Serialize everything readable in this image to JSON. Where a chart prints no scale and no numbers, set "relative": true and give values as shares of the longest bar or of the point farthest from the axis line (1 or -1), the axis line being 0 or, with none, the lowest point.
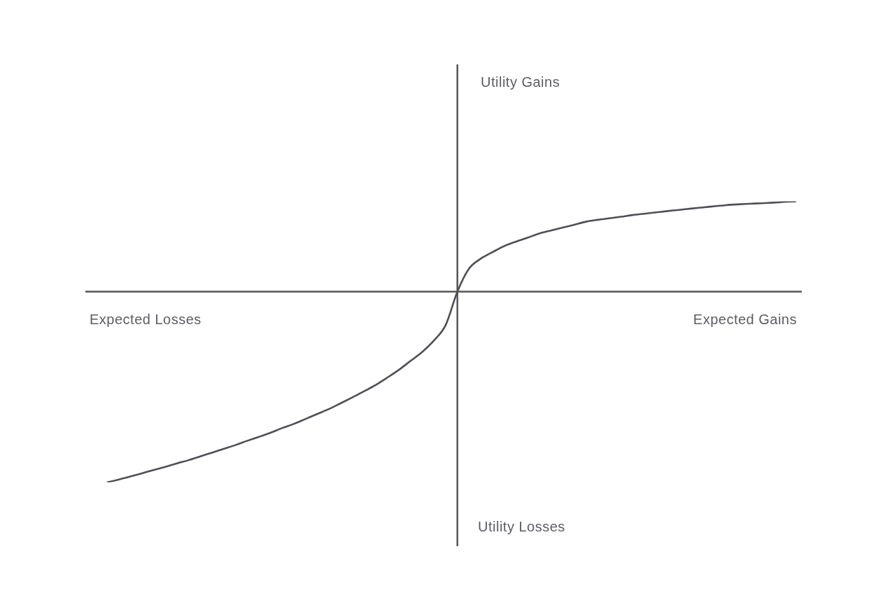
{
  "chart_data": {
    "type": "line",
    "relative": true,
    "categories": [
      null,
      null,
      null,
      null,
      null,
      null,
      null,
      null,
      null,
      null,
      null,
      null,
      null,
      null,
      null,
      null,
      null,
      null,
      null,
      null,
      null,
      null,
      null,
      null,
      null,
      null,
      null,
      null,
      null,
      null,
      null,
      null,
      null,
      null,
      null,
      null,
      null,
      null,
      null,
      null,
      null,
      null,
      null,
      null,
      null,
      null,
      null,
      null,
      null,
      null,
      null,
      null,
      null,
      null,
      null,
      null,
      null,
      null,
      null,
      null
    ],
    "values": [
      -1,
      -0.986,
      -0.97,
      -0.953,
      -0.936,
      -0.919,
      -0.901,
      -0.884,
      -0.864,
      -0.845,
      -0.825,
      -0.805,
      -0.783,
      -0.762,
      -0.74,
      -0.716,
      -0.694,
      -0.668,
      -0.642,
      -0.616,
      -0.586,
      -0.555,
      -0.523,
      -0.49,
      -0.451,
      -0.41,
      -0.363,
      -0.316,
      -0.256,
      -0.175,
      0,
      0.121,
      0.173,
      0.207,
      0.239,
      0.262,
      0.283,
      0.305,
      0.321,
      0.336,
      0.351,
      0.367,
      0.377,
      0.385,
      0.393,
      0.402,
      0.409,
      0.416,
      0.423,
      0.429,
      0.436,
      0.442,
      0.448,
      0.454,
      0.458,
      0.461,
      0.464,
      0.467,
      0.471,
      0.474
    ],
    "color": "#4e4f58",
    "xlabel": "Expected Gains",
    "annotations": [
      "Utility Gains",
      "Expected Losses",
      "Utility Losses"
    ]
  }
}
